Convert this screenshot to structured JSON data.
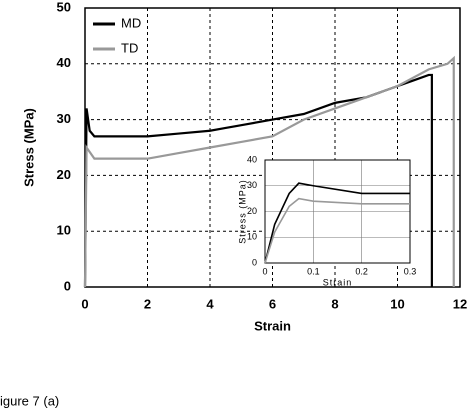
{
  "chart_data": [
    {
      "type": "line",
      "xlabel": "Strain",
      "ylabel": "Stress (MPa)",
      "xlim": [
        0,
        12
      ],
      "ylim": [
        0,
        50
      ],
      "xticks": [
        0,
        2,
        4,
        6,
        8,
        10,
        12
      ],
      "yticks": [
        0,
        10,
        20,
        30,
        40,
        50
      ],
      "grid": true,
      "legend": "upper left",
      "series": [
        {
          "name": "MD",
          "color": "#000000",
          "x": [
            0,
            0.05,
            0.15,
            0.3,
            2,
            2,
            3,
            4,
            4.5,
            5,
            6,
            7,
            8,
            9,
            10,
            10.5,
            11,
            11.1,
            11.1
          ],
          "values": [
            0,
            32,
            28,
            27,
            27,
            27,
            27.5,
            28,
            28.5,
            29,
            30,
            31,
            33,
            34,
            36,
            37,
            38,
            38,
            0
          ]
        },
        {
          "name": "TD",
          "color": "#999999",
          "x": [
            0,
            0.05,
            0.3,
            0.5,
            2,
            3,
            4,
            5,
            6,
            7,
            8,
            9,
            10,
            11,
            11.6,
            11.8,
            11.8
          ],
          "values": [
            0,
            25,
            23,
            23,
            23,
            24,
            25,
            26,
            27,
            30,
            32,
            34,
            36,
            39,
            40,
            41,
            0
          ]
        }
      ]
    },
    {
      "type": "line",
      "xlabel": "Strain",
      "ylabel": "Stress (MPa)",
      "xlim": [
        0,
        0.3
      ],
      "ylim": [
        0,
        40
      ],
      "xticks": [
        0,
        0.1,
        0.2,
        0.3
      ],
      "yticks": [
        0,
        10,
        20,
        30,
        40
      ],
      "grid": true,
      "series": [
        {
          "color": "#000000",
          "x": [
            0,
            0.02,
            0.05,
            0.07,
            0.1,
            0.2,
            0.3
          ],
          "values": [
            0,
            15,
            27,
            31,
            30,
            27,
            27
          ]
        },
        {
          "color": "#999999",
          "x": [
            0,
            0.02,
            0.05,
            0.07,
            0.1,
            0.2,
            0.3
          ],
          "values": [
            0,
            12,
            22,
            25,
            24,
            23,
            23
          ]
        }
      ]
    }
  ],
  "caption": "igure 7 (a)"
}
